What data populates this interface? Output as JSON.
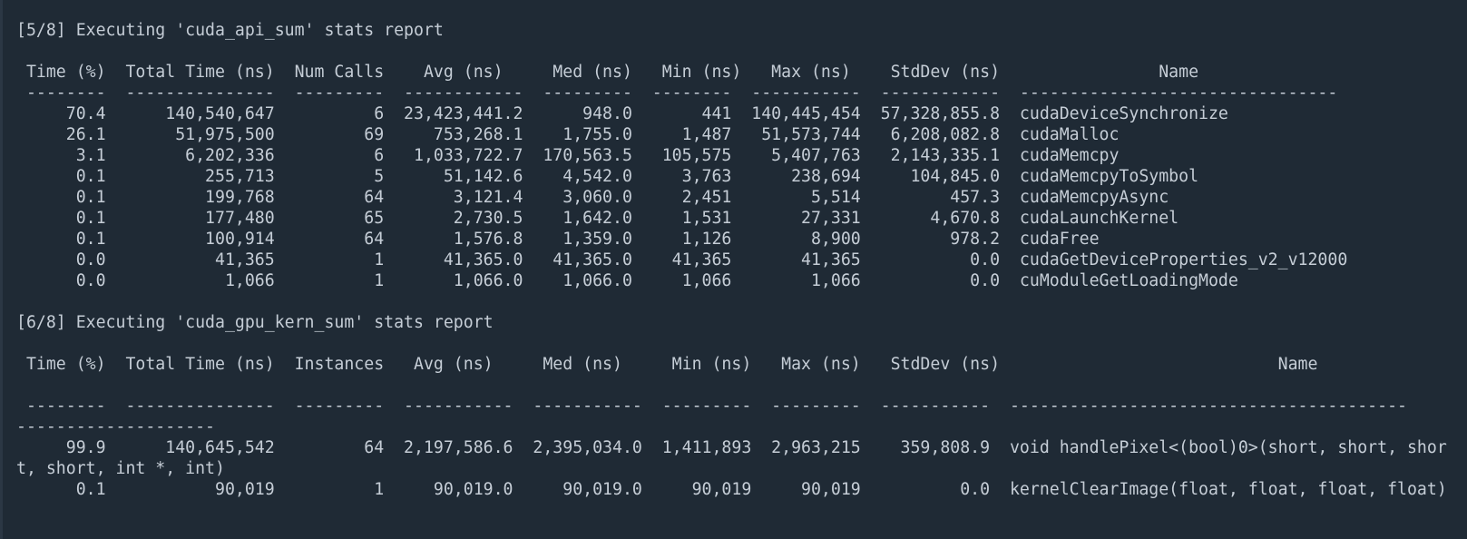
{
  "terminal": {
    "lines": [
      "[5/8] Executing 'cuda_api_sum' stats report",
      "",
      " Time (%)  Total Time (ns)  Num Calls    Avg (ns)     Med (ns)   Min (ns)   Max (ns)    StdDev (ns)                Name",
      " --------  ---------------  ---------  ------------  ---------  --------  -----------  ------------  --------------------------------",
      "     70.4      140,540,647          6  23,423,441.2      948.0       441  140,445,454  57,328,855.8  cudaDeviceSynchronize",
      "     26.1       51,975,500         69     753,268.1    1,755.0     1,487   51,573,744   6,208,082.8  cudaMalloc",
      "      3.1        6,202,336          6   1,033,722.7  170,563.5   105,575    5,407,763   2,143,335.1  cudaMemcpy",
      "      0.1          255,713          5      51,142.6    4,542.0     3,763      238,694     104,845.0  cudaMemcpyToSymbol",
      "      0.1          199,768         64       3,121.4    3,060.0     2,451        5,514         457.3  cudaMemcpyAsync",
      "      0.1          177,480         65       2,730.5    1,642.0     1,531       27,331       4,670.8  cudaLaunchKernel",
      "      0.1          100,914         64       1,576.8    1,359.0     1,126        8,900         978.2  cudaFree",
      "      0.0           41,365          1      41,365.0   41,365.0    41,365       41,365           0.0  cudaGetDeviceProperties_v2_v12000",
      "      0.0            1,066          1       1,066.0    1,066.0     1,066        1,066           0.0  cuModuleGetLoadingMode",
      "",
      "[6/8] Executing 'cuda_gpu_kern_sum' stats report",
      "",
      " Time (%)  Total Time (ns)  Instances   Avg (ns)     Med (ns)     Min (ns)   Max (ns)   StdDev (ns)                            Name",
      "",
      " --------  ---------------  ---------  -----------  -----------  ---------  ---------  -----------  ----------------------------------------",
      "--------------------",
      "     99.9      140,645,542         64  2,197,586.6  2,395,034.0  1,411,893  2,963,215    359,808.9  void handlePixel<(bool)0>(short, short, shor",
      "t, short, int *, int)",
      "      0.1           90,019          1     90,019.0     90,019.0     90,019     90,019          0.0  kernelClearImage(float, float, float, float)"
    ]
  }
}
